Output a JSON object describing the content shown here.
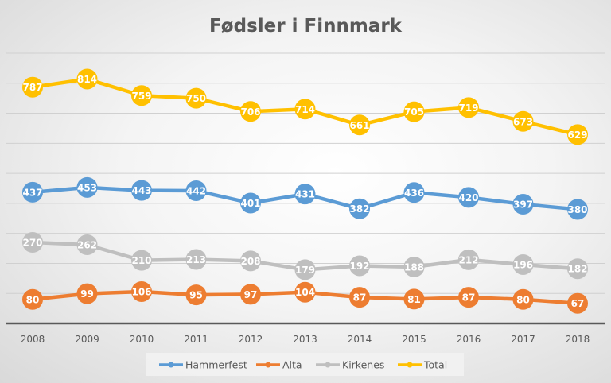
{
  "chart_data": {
    "type": "line",
    "title": "Fødsler i Finnmark",
    "xlabel": "",
    "ylabel": "",
    "categories": [
      "2008",
      "2009",
      "2010",
      "2011",
      "2012",
      "2013",
      "2014",
      "2015",
      "2016",
      "2017",
      "2018"
    ],
    "ylim": [
      0,
      900
    ],
    "y_axis_labels_shown": false,
    "grid": true,
    "legend": "bottom",
    "data_labels": true,
    "series": [
      {
        "name": "Hammerfest",
        "color": "#5b9bd5",
        "values": [
          437,
          453,
          443,
          442,
          401,
          431,
          382,
          436,
          420,
          397,
          380
        ]
      },
      {
        "name": "Alta",
        "color": "#ed7d31",
        "values": [
          80,
          99,
          106,
          95,
          97,
          104,
          87,
          81,
          87,
          80,
          67
        ]
      },
      {
        "name": "Kirkenes",
        "color": "#bfbfbf",
        "values": [
          270,
          262,
          210,
          213,
          208,
          179,
          192,
          188,
          212,
          196,
          182
        ]
      },
      {
        "name": "Total",
        "color": "#ffc000",
        "values": [
          787,
          814,
          759,
          750,
          706,
          714,
          661,
          705,
          719,
          673,
          629
        ]
      }
    ]
  }
}
